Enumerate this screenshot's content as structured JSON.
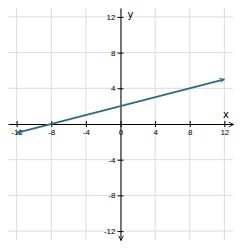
{
  "chart_data": {
    "type": "line",
    "x": [
      -12,
      12
    ],
    "values": [
      -1,
      5
    ],
    "color": "#2e6b7e",
    "marker": "arrow",
    "xlim": [
      -13,
      13
    ],
    "ylim": [
      -13,
      13
    ],
    "xticks": [
      -12,
      -8,
      -4,
      0,
      4,
      8,
      12
    ],
    "yticks": [
      -12,
      -8,
      -4,
      4,
      8,
      12
    ],
    "xlabel": "x",
    "ylabel": "y",
    "grid": true
  }
}
